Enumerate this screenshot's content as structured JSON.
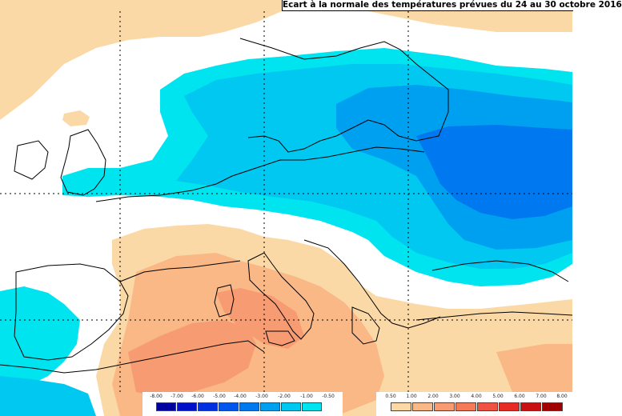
{
  "title": "Ecart à la normale des températures prévues du 24 au 30 octobre 2016",
  "legend": {
    "cold": {
      "labels": [
        "-8.00",
        "-7.00",
        "-6.00",
        "-5.00",
        "-4.00",
        "-3.00",
        "-2.00",
        "-1.00",
        "-0.50"
      ],
      "colors": [
        "#0000a0",
        "#0010c8",
        "#0030e0",
        "#0055ec",
        "#0078f0",
        "#00a0f0",
        "#00c8f0",
        "#00e4f0"
      ]
    },
    "warm": {
      "labels": [
        "0.50",
        "1.00",
        "2.00",
        "3.00",
        "4.00",
        "5.00",
        "6.00",
        "7.00",
        "8.00"
      ],
      "colors": [
        "#fbd9a7",
        "#f9b886",
        "#f79b72",
        "#f47a58",
        "#ef5240",
        "#e62a24",
        "#c81010",
        "#a00000"
      ]
    }
  },
  "palette": {
    "land_background": "#ffffff",
    "anomaly_neutral": "#ffffff",
    "anomaly_minus_0_5": "#00e4f0",
    "anomaly_minus_1": "#00c8f0",
    "anomaly_minus_2": "#00a0f0",
    "anomaly_minus_3": "#0078f0",
    "anomaly_plus_0_5": "#fbd9a7",
    "anomaly_plus_1": "#f9b886",
    "anomaly_plus_2": "#f79b72",
    "anomaly_plus_3": "#f47a58",
    "coastline": "#000000",
    "gridline": "#000000"
  }
}
